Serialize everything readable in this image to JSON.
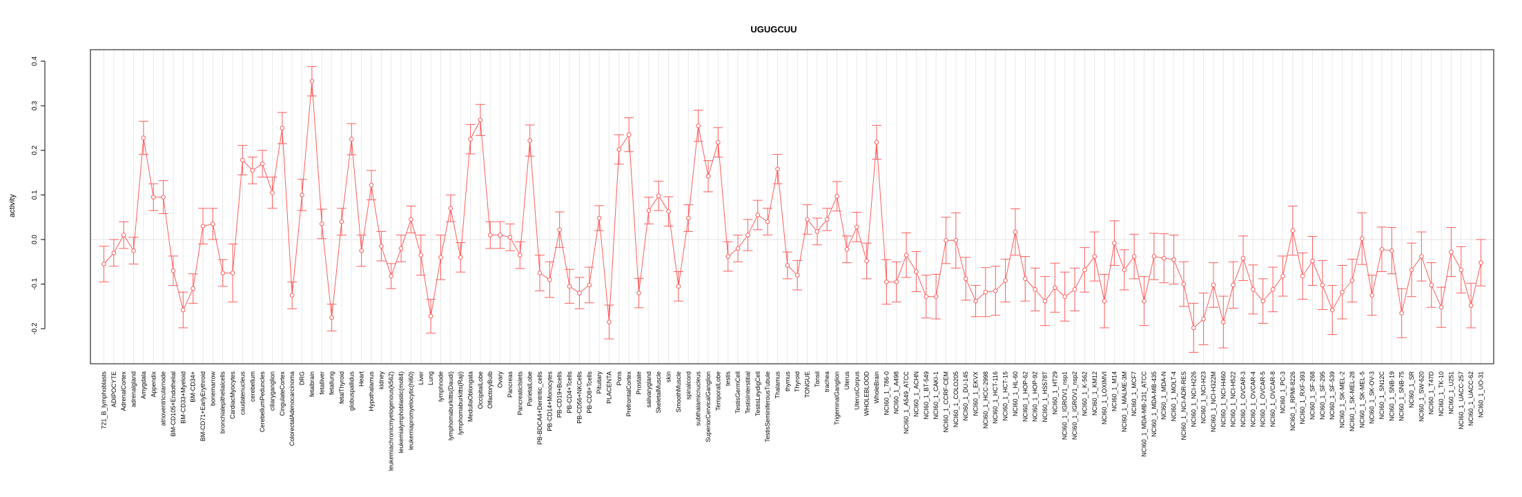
{
  "chart_data": {
    "type": "line",
    "title": "UGUGCUU",
    "xlabel": "",
    "ylabel": "activity",
    "ylim": [
      -0.25,
      0.42
    ],
    "yticks": [
      -0.2,
      -0.1,
      0.0,
      0.1,
      0.2,
      0.3,
      0.4
    ],
    "ytick_labels": [
      "-0.2",
      "-0.1",
      "0.0",
      "0.1",
      "0.2",
      "0.3",
      "0.4"
    ],
    "grid": true,
    "line_color": "#ff5a5a",
    "reference_line": 0.0,
    "series": [
      {
        "name": "activity",
        "points": [
          {
            "label": "721_B_lymphoblasts",
            "value": -0.055,
            "err": 0.04
          },
          {
            "label": "ADIPOCYTE",
            "value": -0.03,
            "err": 0.03
          },
          {
            "label": "AdrenalCortex",
            "value": 0.01,
            "err": 0.03
          },
          {
            "label": "adrenalgland",
            "value": -0.025,
            "err": 0.03
          },
          {
            "label": "Amygdala",
            "value": 0.228,
            "err": 0.037
          },
          {
            "label": "Appendix",
            "value": 0.095,
            "err": 0.03
          },
          {
            "label": "atrioventricularnode",
            "value": 0.095,
            "err": 0.037
          },
          {
            "label": "BM-CD105+Endothelial",
            "value": -0.07,
            "err": 0.033
          },
          {
            "label": "BM-CD33+Myeloid",
            "value": -0.158,
            "err": 0.04
          },
          {
            "label": "BM-CD34+",
            "value": -0.11,
            "err": 0.033
          },
          {
            "label": "BM-CD71+EarlyErythroid",
            "value": 0.03,
            "err": 0.04
          },
          {
            "label": "bonemarrow",
            "value": 0.035,
            "err": 0.035
          },
          {
            "label": "bronchialepithelialcells",
            "value": -0.075,
            "err": 0.03
          },
          {
            "label": "CardiacMyocytes",
            "value": -0.075,
            "err": 0.065
          },
          {
            "label": "caudatenucleus",
            "value": 0.178,
            "err": 0.033
          },
          {
            "label": "cerebellum",
            "value": 0.155,
            "err": 0.03
          },
          {
            "label": "CerebellumPeduncles",
            "value": 0.17,
            "err": 0.03
          },
          {
            "label": "ciliaryganglion",
            "value": 0.105,
            "err": 0.035
          },
          {
            "label": "CingulateCortex",
            "value": 0.25,
            "err": 0.035
          },
          {
            "label": "ColorectalAdenocarcinoma",
            "value": -0.125,
            "err": 0.03
          },
          {
            "label": "DRG",
            "value": 0.1,
            "err": 0.035
          },
          {
            "label": "fetalbrain",
            "value": 0.355,
            "err": 0.033
          },
          {
            "label": "fetalliver",
            "value": 0.035,
            "err": 0.033
          },
          {
            "label": "fetallung",
            "value": -0.175,
            "err": 0.03
          },
          {
            "label": "fetalThyroid",
            "value": 0.04,
            "err": 0.03
          },
          {
            "label": "globuspallidus",
            "value": 0.225,
            "err": 0.035
          },
          {
            "label": "Heart",
            "value": -0.025,
            "err": 0.035
          },
          {
            "label": "Hypothalamus",
            "value": 0.122,
            "err": 0.033
          },
          {
            "label": "kidney",
            "value": -0.015,
            "err": 0.033
          },
          {
            "label": "leukemiachronicmyelogenous(k562)",
            "value": -0.082,
            "err": 0.028
          },
          {
            "label": "leukemialymphoblastic(molt4)",
            "value": -0.02,
            "err": 0.03
          },
          {
            "label": "leukemiapromyelocytic(hl60)",
            "value": 0.045,
            "err": 0.03
          },
          {
            "label": "Liver",
            "value": -0.035,
            "err": 0.045
          },
          {
            "label": "Lung",
            "value": -0.172,
            "err": 0.038
          },
          {
            "label": "lymphnode",
            "value": -0.04,
            "err": 0.05
          },
          {
            "label": "lymphomaburkitts(Daudi)",
            "value": 0.07,
            "err": 0.03
          },
          {
            "label": "lymphomaburkitts(Raji)",
            "value": -0.04,
            "err": 0.033
          },
          {
            "label": "MedullaOblongata",
            "value": 0.225,
            "err": 0.033
          },
          {
            "label": "OccipitalLobe",
            "value": 0.268,
            "err": 0.035
          },
          {
            "label": "OlfactoryBulb",
            "value": 0.01,
            "err": 0.03
          },
          {
            "label": "Ovary",
            "value": 0.01,
            "err": 0.03
          },
          {
            "label": "Pancreas",
            "value": 0.005,
            "err": 0.03
          },
          {
            "label": "PancreaticIslets",
            "value": -0.035,
            "err": 0.03
          },
          {
            "label": "ParietalLobe",
            "value": 0.222,
            "err": 0.035
          },
          {
            "label": "PB-BDCA4+Dentritic_cells",
            "value": -0.075,
            "err": 0.04
          },
          {
            "label": "PB-CD14+Monocytes",
            "value": -0.09,
            "err": 0.04
          },
          {
            "label": "PB-CD19+Bcells",
            "value": 0.022,
            "err": 0.04
          },
          {
            "label": "PB-CD4+Tcells",
            "value": -0.105,
            "err": 0.038
          },
          {
            "label": "PB-CD56+NKCells",
            "value": -0.12,
            "err": 0.035
          },
          {
            "label": "PB-CD8+Tcells",
            "value": -0.102,
            "err": 0.04
          },
          {
            "label": "Pituitary",
            "value": 0.048,
            "err": 0.028
          },
          {
            "label": "PLACENTA",
            "value": -0.185,
            "err": 0.038
          },
          {
            "label": "Pons",
            "value": 0.202,
            "err": 0.033
          },
          {
            "label": "PrefrontalCortex",
            "value": 0.235,
            "err": 0.038
          },
          {
            "label": "Prostate",
            "value": -0.12,
            "err": 0.033
          },
          {
            "label": "salivarygland",
            "value": 0.065,
            "err": 0.03
          },
          {
            "label": "SkeletalMuscle",
            "value": 0.098,
            "err": 0.033
          },
          {
            "label": "skin",
            "value": 0.063,
            "err": 0.033
          },
          {
            "label": "SmoothMuscle",
            "value": -0.105,
            "err": 0.033
          },
          {
            "label": "spinalcord",
            "value": 0.048,
            "err": 0.03
          },
          {
            "label": "subthalamicnucleus",
            "value": 0.255,
            "err": 0.035
          },
          {
            "label": "SuperiorCervicalGanglion",
            "value": 0.142,
            "err": 0.035
          },
          {
            "label": "TemporalLobe",
            "value": 0.218,
            "err": 0.033
          },
          {
            "label": "testis",
            "value": -0.038,
            "err": 0.033
          },
          {
            "label": "TestisGermCell",
            "value": -0.02,
            "err": 0.03
          },
          {
            "label": "TestisInterstitial",
            "value": 0.01,
            "err": 0.035
          },
          {
            "label": "TestisLeydigCell",
            "value": 0.055,
            "err": 0.033
          },
          {
            "label": "TestisSeminiferousTubule",
            "value": 0.04,
            "err": 0.03
          },
          {
            "label": "Thalamus",
            "value": 0.158,
            "err": 0.033
          },
          {
            "label": "thymus",
            "value": -0.058,
            "err": 0.03
          },
          {
            "label": "Thyroid",
            "value": -0.08,
            "err": 0.033
          },
          {
            "label": "TONGUE",
            "value": 0.045,
            "err": 0.033
          },
          {
            "label": "Tonsil",
            "value": 0.018,
            "err": 0.03
          },
          {
            "label": "trachea",
            "value": 0.045,
            "err": 0.025
          },
          {
            "label": "TrigeminalGanglion",
            "value": 0.097,
            "err": 0.033
          },
          {
            "label": "Uterus",
            "value": -0.022,
            "err": 0.03
          },
          {
            "label": "UterusCorpus",
            "value": 0.028,
            "err": 0.033
          },
          {
            "label": "WHOLEBLOOD",
            "value": -0.048,
            "err": 0.04
          },
          {
            "label": "WholeBrain",
            "value": 0.218,
            "err": 0.038
          },
          {
            "label": "NCI60_1_786-0",
            "value": -0.095,
            "err": 0.05
          },
          {
            "label": "NCI60_1_A498",
            "value": -0.095,
            "err": 0.045
          },
          {
            "label": "NCI60_1_A549_ATCC",
            "value": -0.035,
            "err": 0.05
          },
          {
            "label": "NCI60_1_ACHN",
            "value": -0.072,
            "err": 0.045
          },
          {
            "label": "NCI60_1_BT-549",
            "value": -0.128,
            "err": 0.048
          },
          {
            "label": "NCI60_1_CAKI-1",
            "value": -0.128,
            "err": 0.05
          },
          {
            "label": "NCI60_1_CCRF-CEM",
            "value": -0.002,
            "err": 0.052
          },
          {
            "label": "NCI60_1_COLO205",
            "value": -0.002,
            "err": 0.062
          },
          {
            "label": "NCI60_1_DU-145",
            "value": -0.088,
            "err": 0.048
          },
          {
            "label": "NCI60_1_EKVX",
            "value": -0.138,
            "err": 0.035
          },
          {
            "label": "NCI60_1_HCC-2998",
            "value": -0.118,
            "err": 0.055
          },
          {
            "label": "NCI60_1_HCT-116",
            "value": -0.115,
            "err": 0.055
          },
          {
            "label": "NCI60_1_HCT-15",
            "value": -0.092,
            "err": 0.048
          },
          {
            "label": "NCI60_1_HL-60",
            "value": 0.017,
            "err": 0.052
          },
          {
            "label": "NCI60_1_HOP-62",
            "value": -0.088,
            "err": 0.05
          },
          {
            "label": "NCI60_1_HOP-92",
            "value": -0.112,
            "err": 0.048
          },
          {
            "label": "NCI60_1_HS578T",
            "value": -0.138,
            "err": 0.055
          },
          {
            "label": "NCI60_1_HT29",
            "value": -0.108,
            "err": 0.055
          },
          {
            "label": "NCI60_1_IGROV1_nsp1",
            "value": -0.128,
            "err": 0.055
          },
          {
            "label": "NCI60_1_IGROV1_nsp2",
            "value": -0.112,
            "err": 0.048
          },
          {
            "label": "NCI60_1_K-562",
            "value": -0.068,
            "err": 0.05
          },
          {
            "label": "NCI60_1_KM12",
            "value": -0.038,
            "err": 0.055
          },
          {
            "label": "NCI60_1_LOXIMVI",
            "value": -0.138,
            "err": 0.06
          },
          {
            "label": "NCI60_1_M14",
            "value": -0.008,
            "err": 0.05
          },
          {
            "label": "NCI60_1_MALME-3M",
            "value": -0.068,
            "err": 0.045
          },
          {
            "label": "NCI60_1_MCF7",
            "value": -0.038,
            "err": 0.05
          },
          {
            "label": "NCI60_1_MDA-MB-231_ATCC",
            "value": -0.138,
            "err": 0.055
          },
          {
            "label": "NCI60_1_MDA-MB-435",
            "value": -0.038,
            "err": 0.052
          },
          {
            "label": "NCI60_1_MDA-N",
            "value": -0.042,
            "err": 0.055
          },
          {
            "label": "NCI60_1_MOLT-4",
            "value": -0.045,
            "err": 0.055
          },
          {
            "label": "NCI60_1_NCI-ADR-RES",
            "value": -0.1,
            "err": 0.05
          },
          {
            "label": "NCI60_1_NCI-H226",
            "value": -0.198,
            "err": 0.055
          },
          {
            "label": "NCI60_1_NCI-H23",
            "value": -0.178,
            "err": 0.058
          },
          {
            "label": "NCI60_1_NCI-H322M",
            "value": -0.102,
            "err": 0.05
          },
          {
            "label": "NCI60_1_NCI-H460",
            "value": -0.185,
            "err": 0.058
          },
          {
            "label": "NCI60_1_NCI-H522",
            "value": -0.102,
            "err": 0.052
          },
          {
            "label": "NCI60_1_OVCAR-3",
            "value": -0.042,
            "err": 0.05
          },
          {
            "label": "NCI60_1_OVCAR-4",
            "value": -0.112,
            "err": 0.055
          },
          {
            "label": "NCI60_1_OVCAR-5",
            "value": -0.138,
            "err": 0.05
          },
          {
            "label": "NCI60_1_OVCAR-8",
            "value": -0.112,
            "err": 0.05
          },
          {
            "label": "NCI60_1_PC-3",
            "value": -0.082,
            "err": 0.045
          },
          {
            "label": "NCI60_1_RPMI-8226",
            "value": 0.02,
            "err": 0.055
          },
          {
            "label": "NCI60_1_RXF-393",
            "value": -0.082,
            "err": 0.052
          },
          {
            "label": "NCI60_1_SF-268",
            "value": -0.048,
            "err": 0.055
          },
          {
            "label": "NCI60_1_SF-295",
            "value": -0.102,
            "err": 0.055
          },
          {
            "label": "NCI60_1_SF-539",
            "value": -0.158,
            "err": 0.055
          },
          {
            "label": "NCI60_1_SK-MEL-2",
            "value": -0.118,
            "err": 0.06
          },
          {
            "label": "NCI60_1_SK-MEL-28",
            "value": -0.092,
            "err": 0.048
          },
          {
            "label": "NCI60_1_SK-MEL-5",
            "value": 0.002,
            "err": 0.058
          },
          {
            "label": "NCI60_1_SK-OV-3",
            "value": -0.125,
            "err": 0.045
          },
          {
            "label": "NCI60_1_SN12C",
            "value": -0.022,
            "err": 0.05
          },
          {
            "label": "NCI60_1_SNB-19",
            "value": -0.025,
            "err": 0.052
          },
          {
            "label": "NCI60_1_SNB-75",
            "value": -0.165,
            "err": 0.055
          },
          {
            "label": "NCI60_1_SR",
            "value": -0.068,
            "err": 0.06
          },
          {
            "label": "NCI60_1_SW-620",
            "value": -0.038,
            "err": 0.055
          },
          {
            "label": "NCI60_1_T47D",
            "value": -0.102,
            "err": 0.05
          },
          {
            "label": "NCI60_1_TK-10",
            "value": -0.152,
            "err": 0.045
          },
          {
            "label": "NCI60_1_U251",
            "value": -0.028,
            "err": 0.055
          },
          {
            "label": "NCI60_1_UACC-257",
            "value": -0.068,
            "err": 0.052
          },
          {
            "label": "NCI60_1_UACC-62",
            "value": -0.148,
            "err": 0.05
          },
          {
            "label": "NCI60_1_UO-31",
            "value": -0.052,
            "err": 0.052
          }
        ]
      }
    ]
  }
}
